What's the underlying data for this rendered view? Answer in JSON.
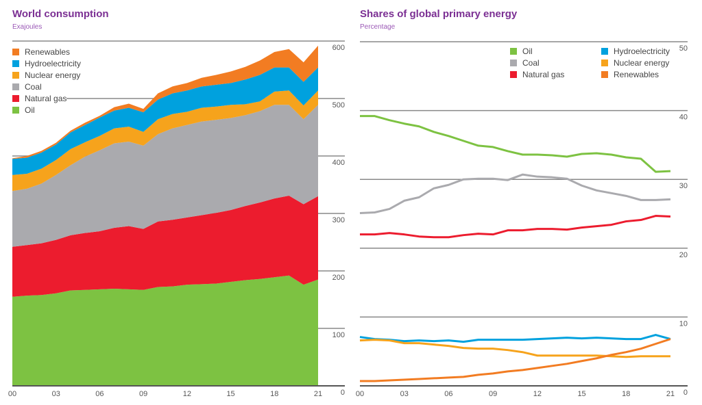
{
  "chart_data": [
    {
      "type": "area",
      "stacked": true,
      "title": "World consumption",
      "subtitle": "Exajoules",
      "x": [
        "00",
        "01",
        "02",
        "03",
        "04",
        "05",
        "06",
        "07",
        "08",
        "09",
        "10",
        "11",
        "12",
        "13",
        "14",
        "15",
        "16",
        "17",
        "18",
        "19",
        "20",
        "21"
      ],
      "xticks": [
        "00",
        "03",
        "06",
        "09",
        "12",
        "15",
        "18",
        "21"
      ],
      "yticks": [
        0,
        100,
        200,
        300,
        400,
        500,
        600
      ],
      "ylim": [
        0,
        600
      ],
      "legend_position": "top-left",
      "series": [
        {
          "name": "Oil",
          "color": "#7dc242",
          "values": [
            155,
            157,
            158,
            161,
            166,
            167,
            168,
            169,
            168,
            167,
            172,
            173,
            176,
            177,
            178,
            181,
            184,
            186,
            189,
            192,
            176,
            185
          ]
        },
        {
          "name": "Natural gas",
          "color": "#ec1c2e",
          "values": [
            87,
            88,
            90,
            93,
            96,
            99,
            101,
            106,
            110,
            106,
            114,
            116,
            117,
            120,
            123,
            125,
            129,
            133,
            137,
            139,
            140,
            145
          ]
        },
        {
          "name": "Coal",
          "color": "#aaaaae",
          "values": [
            97,
            98,
            104,
            113,
            122,
            133,
            141,
            147,
            147,
            145,
            152,
            159,
            161,
            163,
            162,
            160,
            158,
            159,
            163,
            158,
            148,
            159
          ]
        },
        {
          "name": "Nuclear energy",
          "color": "#f6a31c",
          "values": [
            28,
            26,
            26,
            26,
            28,
            25,
            25,
            26,
            26,
            24,
            26,
            25,
            23,
            24,
            23,
            23,
            19,
            17,
            23,
            25,
            24,
            25
          ]
        },
        {
          "name": "Hydroelectricity",
          "color": "#00a1de",
          "values": [
            28,
            28,
            28,
            27,
            29,
            30,
            32,
            31,
            33,
            34,
            34,
            36,
            37,
            37,
            38,
            38,
            43,
            46,
            42,
            40,
            41,
            40
          ]
        },
        {
          "name": "Renewables",
          "color": "#f27c22",
          "values": [
            1,
            3,
            3,
            3,
            3,
            4,
            3,
            6,
            7,
            6,
            11,
            12,
            13,
            15,
            17,
            20,
            22,
            25,
            27,
            32,
            34,
            38
          ]
        }
      ]
    },
    {
      "type": "line",
      "title": "Shares of global primary energy",
      "subtitle": "Percentage",
      "x": [
        "00",
        "01",
        "02",
        "03",
        "04",
        "05",
        "06",
        "07",
        "08",
        "09",
        "10",
        "11",
        "12",
        "13",
        "14",
        "15",
        "16",
        "17",
        "18",
        "19",
        "20",
        "21"
      ],
      "xticks": [
        "00",
        "03",
        "06",
        "09",
        "12",
        "15",
        "18",
        "21"
      ],
      "yticks": [
        0,
        10,
        20,
        30,
        40,
        50
      ],
      "ylim": [
        0,
        50
      ],
      "legend_position": "top-right",
      "series": [
        {
          "name": "Oil",
          "color": "#7dc242",
          "values": [
            39.2,
            39.2,
            38.6,
            38.1,
            37.7,
            36.9,
            36.3,
            35.6,
            34.9,
            34.7,
            34.1,
            33.6,
            33.6,
            33.5,
            33.3,
            33.7,
            33.8,
            33.6,
            33.2,
            33.0,
            31.1,
            31.2
          ]
        },
        {
          "name": "Coal",
          "color": "#aaaaae",
          "values": [
            25.1,
            25.2,
            25.7,
            26.9,
            27.4,
            28.7,
            29.2,
            30.0,
            30.1,
            30.1,
            29.9,
            30.7,
            30.4,
            30.3,
            30.1,
            29.1,
            28.4,
            28.0,
            27.6,
            27.0,
            27.0,
            27.1
          ]
        },
        {
          "name": "Natural gas",
          "color": "#ec1c2e",
          "values": [
            22.0,
            22.0,
            22.2,
            22.0,
            21.7,
            21.6,
            21.6,
            21.9,
            22.1,
            22.0,
            22.6,
            22.6,
            22.8,
            22.8,
            22.7,
            23.0,
            23.2,
            23.4,
            23.9,
            24.1,
            24.7,
            24.6
          ]
        },
        {
          "name": "Hydroelectricity",
          "color": "#00a1de",
          "values": [
            7.1,
            6.8,
            6.7,
            6.5,
            6.6,
            6.5,
            6.6,
            6.4,
            6.7,
            6.7,
            6.7,
            6.7,
            6.8,
            6.9,
            7.0,
            6.9,
            7.0,
            6.9,
            6.8,
            6.8,
            7.4,
            6.8
          ]
        },
        {
          "name": "Nuclear energy",
          "color": "#f6a31c",
          "values": [
            6.6,
            6.7,
            6.6,
            6.2,
            6.2,
            6.0,
            5.8,
            5.5,
            5.4,
            5.4,
            5.2,
            4.9,
            4.4,
            4.4,
            4.4,
            4.4,
            4.4,
            4.3,
            4.2,
            4.3,
            4.3,
            4.3
          ]
        },
        {
          "name": "Renewables",
          "color": "#f27c22",
          "values": [
            0.7,
            0.7,
            0.8,
            0.9,
            1.0,
            1.1,
            1.2,
            1.3,
            1.6,
            1.8,
            2.1,
            2.3,
            2.6,
            2.9,
            3.2,
            3.6,
            4.0,
            4.5,
            4.9,
            5.4,
            6.1,
            6.8
          ]
        }
      ]
    }
  ]
}
